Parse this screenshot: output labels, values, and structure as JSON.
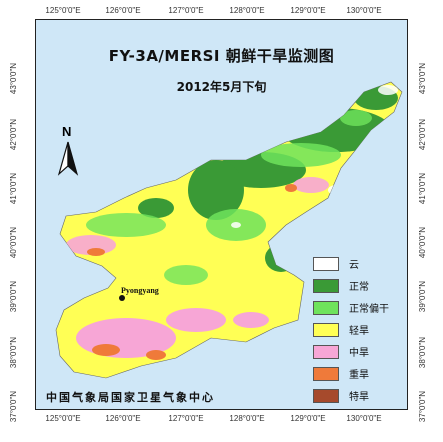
{
  "map": {
    "title": "FY-3A/MERSI 朝鲜干旱监测图",
    "subtitle": "2012年5月下旬",
    "north_arrow": "N",
    "city": "Pyongyang",
    "footer": "中国气象局国家卫星气象中心"
  },
  "ticks": {
    "longitude": [
      "125°0'0\"E",
      "126°0'0\"E",
      "127°0'0\"E",
      "128°0'0\"E",
      "129°0'0\"E",
      "130°0'0\"E"
    ],
    "latitude": [
      "43°0'0\"N",
      "42°0'0\"N",
      "41°0'0\"N",
      "40°0'0\"N",
      "39°0'0\"N",
      "38°0'0\"N",
      "37°0'0\"N"
    ]
  },
  "legend": [
    {
      "label": "云",
      "color": "#ffffff"
    },
    {
      "label": "正常",
      "color": "#3a9a36"
    },
    {
      "label": "正常偏干",
      "color": "#6fe35c"
    },
    {
      "label": "轻旱",
      "color": "#ffff55"
    },
    {
      "label": "中旱",
      "color": "#f7a6d6"
    },
    {
      "label": "重旱",
      "color": "#ef7a3a"
    },
    {
      "label": "特旱",
      "color": "#a64a2c"
    }
  ],
  "colors": {
    "background": "#cfe7f7",
    "normal": "#3a9a36",
    "slightly_dry": "#6fe35c",
    "mild": "#ffff55",
    "moderate": "#f7a6d6",
    "severe": "#ef7a3a"
  }
}
